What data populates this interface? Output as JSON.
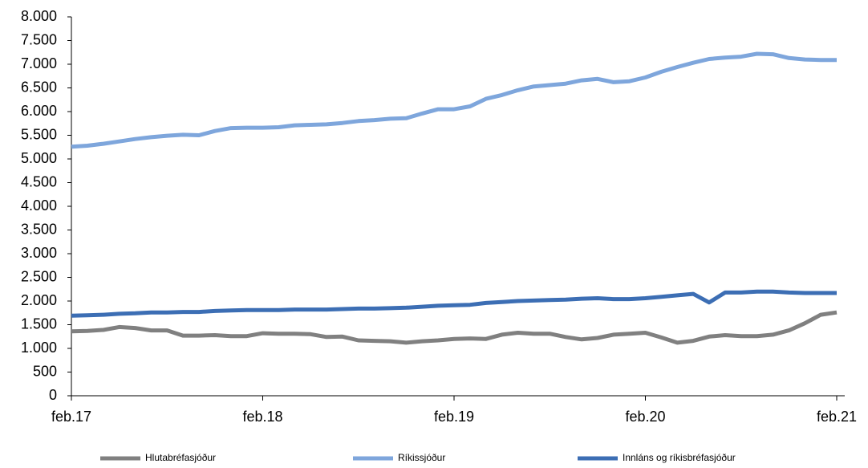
{
  "chart_data": {
    "type": "line",
    "categories": [
      "feb.17",
      null,
      null,
      null,
      null,
      null,
      null,
      null,
      null,
      null,
      null,
      null,
      "feb.18",
      null,
      null,
      null,
      null,
      null,
      null,
      null,
      null,
      null,
      null,
      null,
      "feb.19",
      null,
      null,
      null,
      null,
      null,
      null,
      null,
      null,
      null,
      null,
      null,
      "feb.20",
      null,
      null,
      null,
      null,
      null,
      null,
      null,
      null,
      null,
      null,
      null,
      "feb.21"
    ],
    "series": [
      {
        "name": "Hlutabréfasjóður",
        "color": "#808080",
        "values": [
          1360,
          1370,
          1390,
          1450,
          1430,
          1380,
          1380,
          1270,
          1270,
          1280,
          1260,
          1260,
          1320,
          1310,
          1310,
          1300,
          1240,
          1250,
          1170,
          1160,
          1150,
          1120,
          1150,
          1170,
          1200,
          1210,
          1200,
          1290,
          1330,
          1310,
          1310,
          1240,
          1190,
          1220,
          1290,
          1310,
          1330,
          1230,
          1120,
          1160,
          1250,
          1280,
          1260,
          1260,
          1290,
          1380,
          1530,
          1710,
          1760
        ]
      },
      {
        "name": "Ríkissjóður",
        "color": "#7ea6dc",
        "values": [
          5260,
          5280,
          5320,
          5370,
          5420,
          5460,
          5490,
          5510,
          5500,
          5590,
          5650,
          5660,
          5660,
          5670,
          5710,
          5720,
          5730,
          5760,
          5800,
          5820,
          5850,
          5860,
          5960,
          6050,
          6050,
          6110,
          6270,
          6350,
          6450,
          6530,
          6560,
          6590,
          6660,
          6690,
          6620,
          6640,
          6720,
          6840,
          6940,
          7030,
          7110,
          7140,
          7160,
          7220,
          7210,
          7130,
          7100,
          7090,
          7090
        ]
      },
      {
        "name": "Innláns og ríkisbréfasjóður",
        "color": "#3c6eb4",
        "values": [
          1690,
          1700,
          1710,
          1730,
          1740,
          1760,
          1760,
          1770,
          1770,
          1790,
          1800,
          1810,
          1810,
          1810,
          1820,
          1820,
          1820,
          1830,
          1840,
          1840,
          1850,
          1860,
          1880,
          1900,
          1910,
          1920,
          1960,
          1980,
          2000,
          2010,
          2020,
          2030,
          2050,
          2060,
          2040,
          2040,
          2060,
          2090,
          2120,
          2150,
          1970,
          2180,
          2180,
          2200,
          2200,
          2180,
          2170,
          2170,
          2170
        ]
      }
    ],
    "ylim": [
      0,
      8000
    ],
    "yticks": [
      0,
      500,
      {
        "value": 1000,
        "label": "1.000"
      },
      {
        "value": 1500,
        "label": "1.500"
      },
      {
        "value": 2000,
        "label": "2.000"
      },
      {
        "value": 2500,
        "label": "2.500"
      },
      {
        "value": 3000,
        "label": "3.000"
      },
      {
        "value": 3500,
        "label": "3.500"
      },
      {
        "value": 4000,
        "label": "4.000"
      },
      {
        "value": 4500,
        "label": "4.500"
      },
      {
        "value": 5000,
        "label": "5.000"
      },
      {
        "value": 5500,
        "label": "5.500"
      },
      {
        "value": 6000,
        "label": "6.000"
      },
      {
        "value": 6500,
        "label": "6.500"
      },
      {
        "value": 7000,
        "label": "7.000"
      },
      {
        "value": 7500,
        "label": "7.500"
      },
      {
        "value": 8000,
        "label": "8.000"
      }
    ],
    "grid": false,
    "legend": "bottom"
  }
}
